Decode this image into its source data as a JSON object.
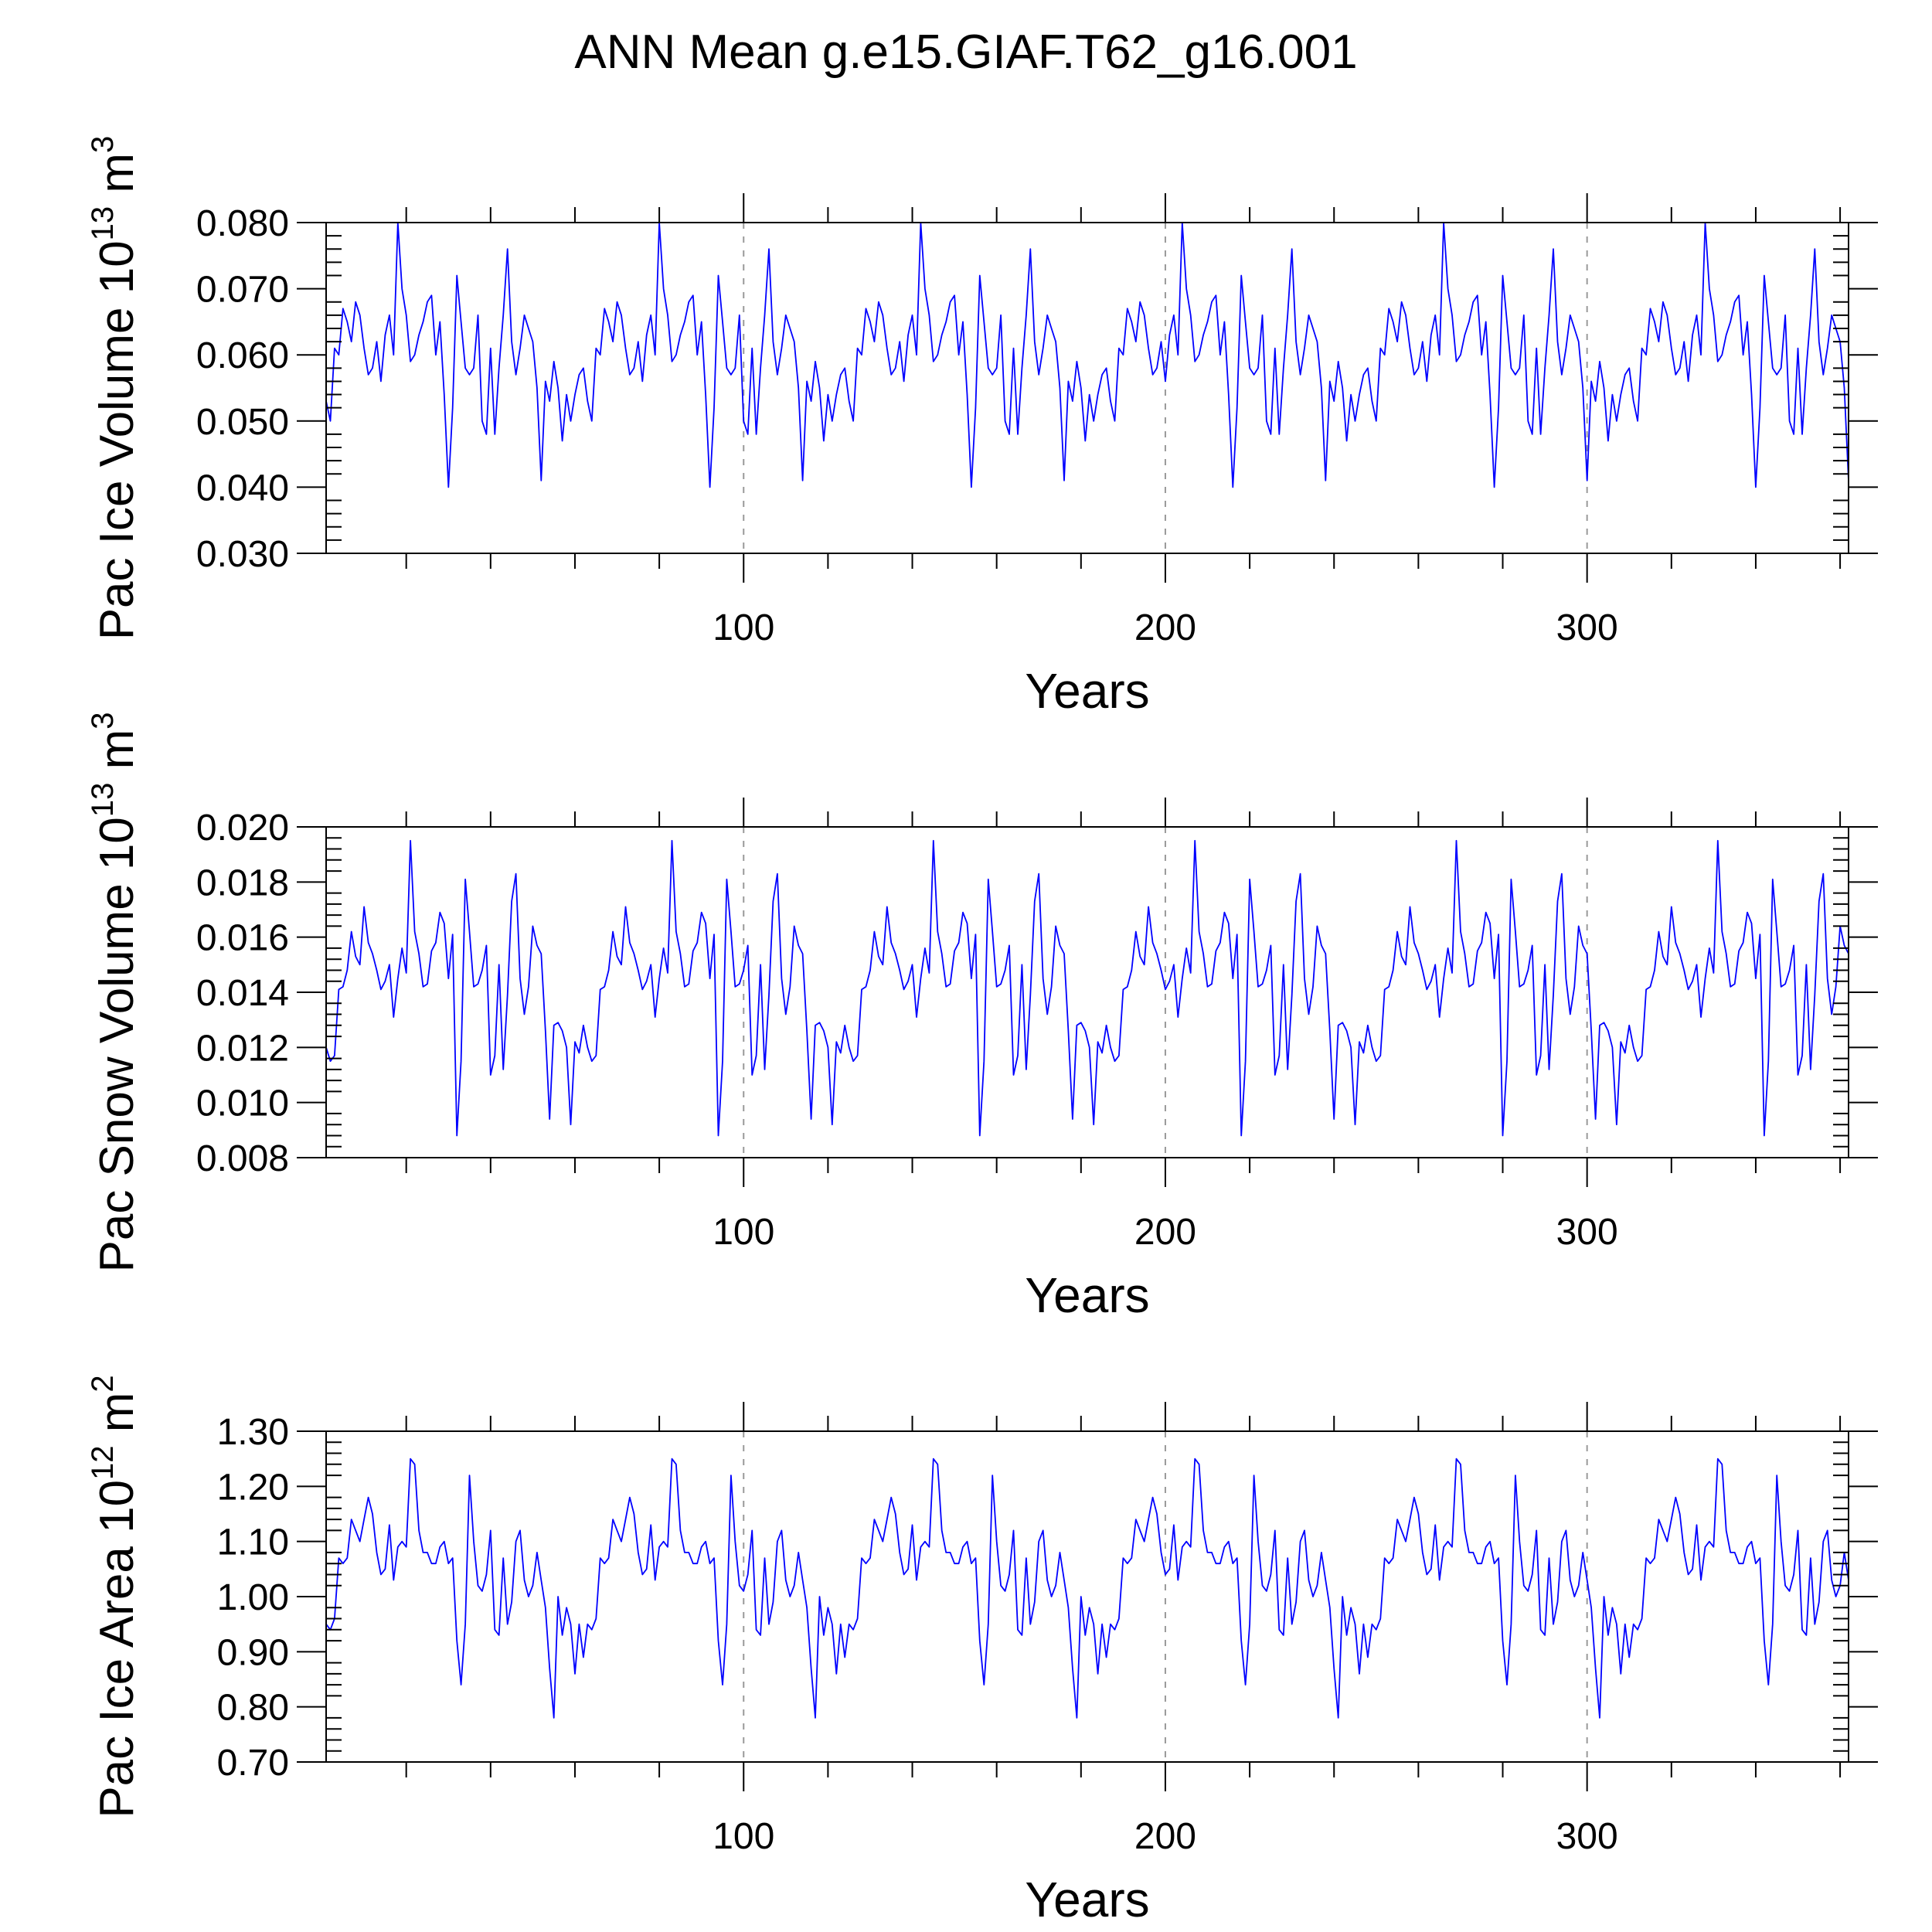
{
  "figure": {
    "title": "ANN Mean g.e15.GIAF.T62_g16.001"
  },
  "style": {
    "line_color": "#0000ff",
    "axis_color": "#000000",
    "grid_color": "#999999",
    "background": "#ffffff"
  },
  "chart_data": [
    {
      "type": "line",
      "ylabel": "Pac Ice Volume 10",
      "ylabel_exp": "13",
      "ylabel_unit": " m",
      "ylabel_unit_exp": "3",
      "xlabel": "Years",
      "xlim": [
        1,
        362
      ],
      "ylim": [
        0.03,
        0.08
      ],
      "yticks": [
        0.03,
        0.04,
        0.05,
        0.06,
        0.07,
        0.08
      ],
      "ytick_labels": [
        "0.030",
        "0.040",
        "0.050",
        "0.060",
        "0.070",
        "0.080"
      ],
      "xticks": [
        100,
        200,
        300
      ],
      "xtick_labels": [
        "100",
        "200",
        "300"
      ],
      "vgrid": [
        100,
        200,
        300
      ],
      "cycle": [
        0.053,
        0.05,
        0.061,
        0.06,
        0.067,
        0.065,
        0.062,
        0.068,
        0.066,
        0.061,
        0.057,
        0.058,
        0.062,
        0.056,
        0.063,
        0.066,
        0.06,
        0.08,
        0.07,
        0.066,
        0.059,
        0.06,
        0.063,
        0.065,
        0.068,
        0.069,
        0.06,
        0.065,
        0.054,
        0.04,
        0.052,
        0.072,
        0.065,
        0.058,
        0.057,
        0.058,
        0.066,
        0.05,
        0.048,
        0.061,
        0.048,
        0.058,
        0.066,
        0.076,
        0.062,
        0.057,
        0.061,
        0.066,
        0.064,
        0.062,
        0.055,
        0.041,
        0.056,
        0.053,
        0.059,
        0.055,
        0.047,
        0.054,
        0.05,
        0.054,
        0.057,
        0.058
      ]
    },
    {
      "type": "line",
      "ylabel": "Pac Snow Volume 10",
      "ylabel_exp": "13",
      "ylabel_unit": " m",
      "ylabel_unit_exp": "3",
      "xlabel": "Years",
      "xlim": [
        1,
        362
      ],
      "ylim": [
        0.008,
        0.02
      ],
      "yticks": [
        0.008,
        0.01,
        0.012,
        0.014,
        0.016,
        0.018,
        0.02
      ],
      "ytick_labels": [
        "0.008",
        "0.010",
        "0.012",
        "0.014",
        "0.016",
        "0.018",
        "0.020"
      ],
      "xticks": [
        100,
        200,
        300
      ],
      "xtick_labels": [
        "100",
        "200",
        "300"
      ],
      "vgrid": [
        100,
        200,
        300
      ],
      "cycle": [
        0.012,
        0.0115,
        0.0117,
        0.0141,
        0.0142,
        0.0148,
        0.0162,
        0.0153,
        0.015,
        0.0171,
        0.0158,
        0.0154,
        0.0148,
        0.0141,
        0.0144,
        0.015,
        0.0131,
        0.0145,
        0.0156,
        0.0147,
        0.0195,
        0.0162,
        0.0154,
        0.0142,
        0.0143,
        0.0155,
        0.0158,
        0.0169,
        0.0165,
        0.0145,
        0.0161,
        0.0088,
        0.0115,
        0.0181,
        0.0162,
        0.0142,
        0.0143,
        0.0148,
        0.0157,
        0.011,
        0.0117,
        0.015,
        0.0112,
        0.0139,
        0.0173,
        0.0183,
        0.0145,
        0.0132,
        0.0142,
        0.0164,
        0.0157,
        0.0154,
        0.0126,
        0.0094,
        0.0128,
        0.0129,
        0.0126,
        0.012,
        0.0092,
        0.0122,
        0.0118,
        0.0128
      ]
    },
    {
      "type": "line",
      "ylabel": "Pac Ice Area 10",
      "ylabel_exp": "12",
      "ylabel_unit": " m",
      "ylabel_unit_exp": "2",
      "xlabel": "Years",
      "xlim": [
        1,
        362
      ],
      "ylim": [
        0.7,
        1.3
      ],
      "yticks": [
        0.7,
        0.8,
        0.9,
        1.0,
        1.1,
        1.2,
        1.3
      ],
      "ytick_labels": [
        "0.70",
        "0.80",
        "0.90",
        "1.00",
        "1.10",
        "1.20",
        "1.30"
      ],
      "xticks": [
        100,
        200,
        300
      ],
      "xtick_labels": [
        "100",
        "200",
        "300"
      ],
      "vgrid": [
        100,
        200,
        300
      ],
      "cycle": [
        0.95,
        0.94,
        0.96,
        1.07,
        1.06,
        1.07,
        1.14,
        1.12,
        1.1,
        1.14,
        1.18,
        1.15,
        1.08,
        1.04,
        1.05,
        1.13,
        1.03,
        1.09,
        1.1,
        1.09,
        1.25,
        1.24,
        1.12,
        1.08,
        1.08,
        1.06,
        1.06,
        1.09,
        1.1,
        1.06,
        1.07,
        0.92,
        0.84,
        0.95,
        1.22,
        1.1,
        1.02,
        1.01,
        1.04,
        1.12,
        0.94,
        0.93,
        1.07,
        0.95,
        0.99,
        1.1,
        1.12,
        1.03,
        1.0,
        1.02,
        1.08,
        1.03,
        0.98,
        0.87,
        0.78,
        1.0,
        0.93,
        0.98,
        0.95,
        0.86,
        0.95,
        0.89
      ]
    }
  ]
}
